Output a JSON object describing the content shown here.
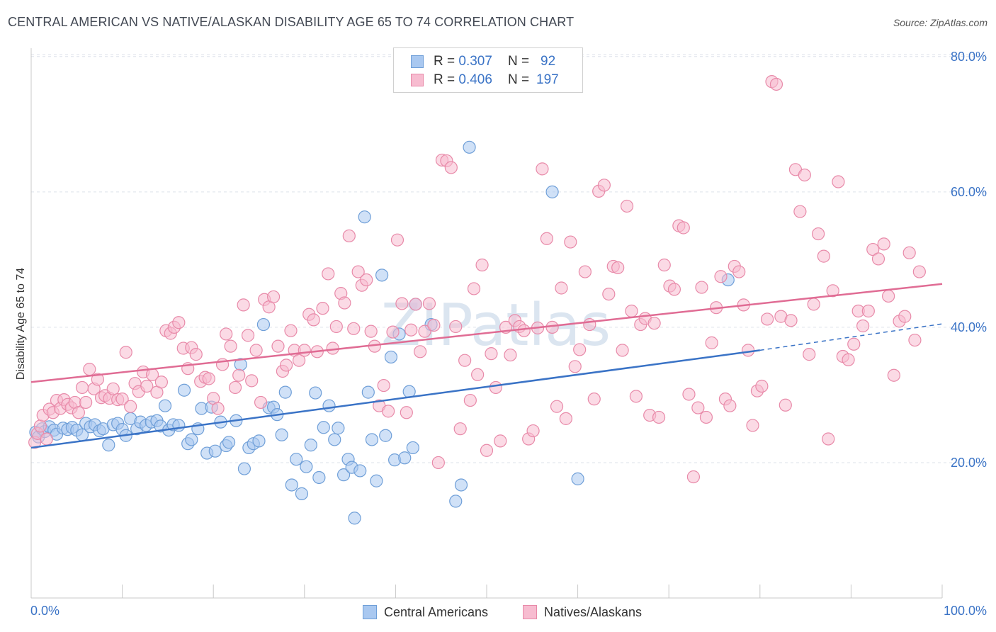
{
  "title": "CENTRAL AMERICAN VS NATIVE/ALASKAN DISABILITY AGE 65 TO 74 CORRELATION CHART",
  "source": "Source: ZipAtlas.com",
  "watermark": "ZIPatlas",
  "legend": {
    "rows": [
      {
        "r_label": "R =",
        "r_value": "0.307",
        "n_label": "N =",
        "n_value": "92",
        "color": "#a9c8f0",
        "border": "#6f9fd8"
      },
      {
        "r_label": "R =",
        "r_value": "0.406",
        "n_label": "N =",
        "n_value": "197",
        "color": "#f7bcd0",
        "border": "#e88aa9"
      }
    ]
  },
  "bottom_legend": [
    {
      "label": "Central Americans",
      "color": "#a9c8f0",
      "border": "#6f9fd8"
    },
    {
      "label": "Natives/Alaskans",
      "color": "#f7bcd0",
      "border": "#e88aa9"
    }
  ],
  "chart_data": {
    "type": "scatter",
    "title": "CENTRAL AMERICAN VS NATIVE/ALASKAN DISABILITY AGE 65 TO 74 CORRELATION CHART",
    "xlabel": "",
    "ylabel": "Disability Age 65 to 74",
    "xlim": [
      0,
      100
    ],
    "ylim": [
      0,
      82
    ],
    "x_tick_labels": [
      "0.0%",
      "100.0%"
    ],
    "y_ticks": [
      20,
      40,
      60,
      80
    ],
    "y_tick_labels": [
      "20.0%",
      "40.0%",
      "60.0%",
      "80.0%"
    ],
    "grid": true,
    "legend_position": "top-center",
    "series": [
      {
        "name": "Central Americans",
        "color": "#6f9fd8",
        "fill": "#a9c8f0",
        "trend_line": {
          "x": [
            0,
            80
          ],
          "y": [
            22.2,
            36.6
          ],
          "dashed_extension": {
            "x": [
              80,
              100
            ],
            "y": [
              36.6,
              40.5
            ]
          },
          "color": "#3a73c6"
        },
        "points": [
          [
            0.5,
            24.5
          ],
          [
            0.8,
            23.8
          ],
          [
            1.2,
            25.0
          ],
          [
            1.5,
            24.6
          ],
          [
            2.0,
            25.3
          ],
          [
            2.5,
            24.8
          ],
          [
            2.8,
            24.2
          ],
          [
            3.5,
            25.1
          ],
          [
            4.0,
            24.9
          ],
          [
            4.5,
            25.2
          ],
          [
            5.0,
            24.8
          ],
          [
            5.6,
            24.1
          ],
          [
            6.0,
            25.8
          ],
          [
            6.5,
            25.3
          ],
          [
            7.0,
            25.6
          ],
          [
            7.5,
            24.7
          ],
          [
            7.9,
            25.0
          ],
          [
            8.5,
            22.6
          ],
          [
            9.0,
            25.6
          ],
          [
            9.5,
            25.8
          ],
          [
            10.0,
            24.9
          ],
          [
            10.4,
            24.0
          ],
          [
            10.9,
            26.5
          ],
          [
            11.6,
            25.0
          ],
          [
            12.0,
            26.0
          ],
          [
            12.6,
            25.5
          ],
          [
            13.2,
            26.0
          ],
          [
            13.8,
            26.2
          ],
          [
            14.2,
            25.4
          ],
          [
            14.7,
            28.4
          ],
          [
            15.1,
            24.8
          ],
          [
            15.6,
            25.6
          ],
          [
            16.2,
            25.5
          ],
          [
            16.8,
            30.7
          ],
          [
            17.2,
            22.8
          ],
          [
            17.6,
            23.4
          ],
          [
            18.3,
            25.0
          ],
          [
            18.7,
            28.0
          ],
          [
            19.3,
            21.4
          ],
          [
            19.8,
            28.2
          ],
          [
            20.2,
            21.7
          ],
          [
            20.8,
            26.0
          ],
          [
            21.4,
            22.5
          ],
          [
            21.7,
            23.0
          ],
          [
            22.5,
            26.2
          ],
          [
            23.0,
            34.5
          ],
          [
            23.4,
            19.1
          ],
          [
            23.9,
            22.2
          ],
          [
            24.4,
            22.8
          ],
          [
            25.0,
            23.2
          ],
          [
            25.5,
            40.4
          ],
          [
            26.1,
            28.1
          ],
          [
            26.6,
            28.2
          ],
          [
            27.0,
            27.1
          ],
          [
            27.5,
            24.1
          ],
          [
            27.9,
            30.4
          ],
          [
            28.6,
            16.7
          ],
          [
            29.1,
            20.5
          ],
          [
            29.7,
            15.4
          ],
          [
            30.2,
            19.4
          ],
          [
            30.7,
            22.6
          ],
          [
            31.2,
            30.3
          ],
          [
            31.6,
            17.8
          ],
          [
            32.1,
            25.2
          ],
          [
            32.7,
            28.4
          ],
          [
            33.3,
            23.4
          ],
          [
            33.7,
            25.1
          ],
          [
            34.3,
            18.2
          ],
          [
            34.8,
            20.5
          ],
          [
            35.2,
            19.3
          ],
          [
            35.5,
            11.8
          ],
          [
            36.1,
            18.8
          ],
          [
            36.6,
            56.3
          ],
          [
            37.0,
            30.4
          ],
          [
            37.4,
            23.4
          ],
          [
            37.9,
            17.3
          ],
          [
            38.5,
            47.7
          ],
          [
            38.9,
            24.0
          ],
          [
            39.5,
            35.6
          ],
          [
            39.9,
            20.4
          ],
          [
            40.4,
            39.0
          ],
          [
            41.0,
            20.7
          ],
          [
            41.5,
            30.5
          ],
          [
            41.9,
            22.2
          ],
          [
            42.2,
            43.4
          ],
          [
            43.9,
            40.4
          ],
          [
            46.6,
            14.3
          ],
          [
            47.2,
            16.7
          ],
          [
            48.1,
            66.6
          ],
          [
            57.2,
            60.0
          ],
          [
            60.0,
            17.6
          ],
          [
            76.5,
            47.0
          ]
        ]
      },
      {
        "name": "Natives/Alaskans",
        "color": "#e88aa9",
        "fill": "#f7bcd0",
        "trend_line": {
          "x": [
            0,
            100
          ],
          "y": [
            31.9,
            46.4
          ],
          "color": "#e06c94"
        },
        "points": [
          [
            0.4,
            23.0
          ],
          [
            0.7,
            24.3
          ],
          [
            1.0,
            25.4
          ],
          [
            1.3,
            27.0
          ],
          [
            1.7,
            23.5
          ],
          [
            2.0,
            27.9
          ],
          [
            2.4,
            27.4
          ],
          [
            2.8,
            29.2
          ],
          [
            3.2,
            28.0
          ],
          [
            3.6,
            29.3
          ],
          [
            4.0,
            28.6
          ],
          [
            4.4,
            28.1
          ],
          [
            4.8,
            28.9
          ],
          [
            5.2,
            27.4
          ],
          [
            5.6,
            31.1
          ],
          [
            6.0,
            28.9
          ],
          [
            6.4,
            33.8
          ],
          [
            6.9,
            30.9
          ],
          [
            7.3,
            32.3
          ],
          [
            7.7,
            29.6
          ],
          [
            8.1,
            29.9
          ],
          [
            8.6,
            29.5
          ],
          [
            9.0,
            30.9
          ],
          [
            9.5,
            29.3
          ],
          [
            10.0,
            29.4
          ],
          [
            10.4,
            36.3
          ],
          [
            10.9,
            28.3
          ],
          [
            11.4,
            31.7
          ],
          [
            11.8,
            30.5
          ],
          [
            12.3,
            33.4
          ],
          [
            12.7,
            31.3
          ],
          [
            13.3,
            33.0
          ],
          [
            13.8,
            30.4
          ],
          [
            14.3,
            31.9
          ],
          [
            14.8,
            39.5
          ],
          [
            15.3,
            39.1
          ],
          [
            15.7,
            40.0
          ],
          [
            16.2,
            40.7
          ],
          [
            16.7,
            36.9
          ],
          [
            17.2,
            33.9
          ],
          [
            17.6,
            37.0
          ],
          [
            18.1,
            36.0
          ],
          [
            18.6,
            32.0
          ],
          [
            19.1,
            32.6
          ],
          [
            19.5,
            32.4
          ],
          [
            20.0,
            29.5
          ],
          [
            20.5,
            28.0
          ],
          [
            21.0,
            34.5
          ],
          [
            21.4,
            39.0
          ],
          [
            21.9,
            37.2
          ],
          [
            22.4,
            31.1
          ],
          [
            22.8,
            32.9
          ],
          [
            23.3,
            43.3
          ],
          [
            23.8,
            38.8
          ],
          [
            24.2,
            32.1
          ],
          [
            24.7,
            36.6
          ],
          [
            25.2,
            28.9
          ],
          [
            25.6,
            44.1
          ],
          [
            26.1,
            43.0
          ],
          [
            26.6,
            44.5
          ],
          [
            27.1,
            37.2
          ],
          [
            27.6,
            33.5
          ],
          [
            28.0,
            34.4
          ],
          [
            28.5,
            39.5
          ],
          [
            28.9,
            36.6
          ],
          [
            29.4,
            35.1
          ],
          [
            30.0,
            36.6
          ],
          [
            30.5,
            41.9
          ],
          [
            31.0,
            41.1
          ],
          [
            31.4,
            36.4
          ],
          [
            32.0,
            42.8
          ],
          [
            32.6,
            47.9
          ],
          [
            33.1,
            36.9
          ],
          [
            33.5,
            40.1
          ],
          [
            34.0,
            45.0
          ],
          [
            34.4,
            43.6
          ],
          [
            34.9,
            53.5
          ],
          [
            35.4,
            39.8
          ],
          [
            35.9,
            48.2
          ],
          [
            36.3,
            46.2
          ],
          [
            36.8,
            47.0
          ],
          [
            37.3,
            39.4
          ],
          [
            37.7,
            37.2
          ],
          [
            38.2,
            28.4
          ],
          [
            38.7,
            31.4
          ],
          [
            39.2,
            27.6
          ],
          [
            39.7,
            39.3
          ],
          [
            40.2,
            52.9
          ],
          [
            40.7,
            43.5
          ],
          [
            41.2,
            27.4
          ],
          [
            41.7,
            39.6
          ],
          [
            42.2,
            43.4
          ],
          [
            42.7,
            36.4
          ],
          [
            43.2,
            39.4
          ],
          [
            43.7,
            43.5
          ],
          [
            44.2,
            40.3
          ],
          [
            44.7,
            20.0
          ],
          [
            45.1,
            64.7
          ],
          [
            45.6,
            64.6
          ],
          [
            46.1,
            63.6
          ],
          [
            46.6,
            40.1
          ],
          [
            47.1,
            25.0
          ],
          [
            47.6,
            35.1
          ],
          [
            48.2,
            29.2
          ],
          [
            48.6,
            45.7
          ],
          [
            49.0,
            33.0
          ],
          [
            49.5,
            49.2
          ],
          [
            50.0,
            21.8
          ],
          [
            50.5,
            36.1
          ],
          [
            51.0,
            31.1
          ],
          [
            51.5,
            23.2
          ],
          [
            52.1,
            40.0
          ],
          [
            52.6,
            35.9
          ],
          [
            53.1,
            41.0
          ],
          [
            53.6,
            40.1
          ],
          [
            54.1,
            39.5
          ],
          [
            54.6,
            23.5
          ],
          [
            55.1,
            24.7
          ],
          [
            55.6,
            39.9
          ],
          [
            56.1,
            63.4
          ],
          [
            56.6,
            53.1
          ],
          [
            57.2,
            40.0
          ],
          [
            57.7,
            28.3
          ],
          [
            58.2,
            45.8
          ],
          [
            58.7,
            26.5
          ],
          [
            59.2,
            52.6
          ],
          [
            59.7,
            34.2
          ],
          [
            60.2,
            36.7
          ],
          [
            60.8,
            48.2
          ],
          [
            61.3,
            40.4
          ],
          [
            61.8,
            29.4
          ],
          [
            62.3,
            60.1
          ],
          [
            62.9,
            61.0
          ],
          [
            63.4,
            44.9
          ],
          [
            63.9,
            49.0
          ],
          [
            64.4,
            48.8
          ],
          [
            64.9,
            36.6
          ],
          [
            65.4,
            57.9
          ],
          [
            65.9,
            42.4
          ],
          [
            66.4,
            29.8
          ],
          [
            66.9,
            40.4
          ],
          [
            67.4,
            41.3
          ],
          [
            67.9,
            27.0
          ],
          [
            68.4,
            40.6
          ],
          [
            68.9,
            26.7
          ],
          [
            69.5,
            49.2
          ],
          [
            70.1,
            46.1
          ],
          [
            70.6,
            45.6
          ],
          [
            71.1,
            55.0
          ],
          [
            71.6,
            54.7
          ],
          [
            72.2,
            30.1
          ],
          [
            72.7,
            17.9
          ],
          [
            73.2,
            28.1
          ],
          [
            73.6,
            45.9
          ],
          [
            74.1,
            26.7
          ],
          [
            74.7,
            37.7
          ],
          [
            75.2,
            42.9
          ],
          [
            75.7,
            47.5
          ],
          [
            76.2,
            29.4
          ],
          [
            76.7,
            28.4
          ],
          [
            77.2,
            49.0
          ],
          [
            77.7,
            48.2
          ],
          [
            78.2,
            43.3
          ],
          [
            78.7,
            36.6
          ],
          [
            79.2,
            25.5
          ],
          [
            79.7,
            30.6
          ],
          [
            80.2,
            31.3
          ],
          [
            80.8,
            41.2
          ],
          [
            81.3,
            76.3
          ],
          [
            81.8,
            75.9
          ],
          [
            82.3,
            41.6
          ],
          [
            82.8,
            28.5
          ],
          [
            83.4,
            41.0
          ],
          [
            83.9,
            63.3
          ],
          [
            84.4,
            57.1
          ],
          [
            84.9,
            62.5
          ],
          [
            85.4,
            36.0
          ],
          [
            85.9,
            43.4
          ],
          [
            86.4,
            53.8
          ],
          [
            87.0,
            50.5
          ],
          [
            87.5,
            23.5
          ],
          [
            88.0,
            45.4
          ],
          [
            88.6,
            61.5
          ],
          [
            89.1,
            35.7
          ],
          [
            89.7,
            35.2
          ],
          [
            90.3,
            37.5
          ],
          [
            90.8,
            42.4
          ],
          [
            91.3,
            40.2
          ],
          [
            91.9,
            42.4
          ],
          [
            92.4,
            51.5
          ],
          [
            93.0,
            50.1
          ],
          [
            93.6,
            52.3
          ],
          [
            94.1,
            44.6
          ],
          [
            94.7,
            32.9
          ],
          [
            95.3,
            40.9
          ],
          [
            95.9,
            41.6
          ],
          [
            96.4,
            51.0
          ],
          [
            97.0,
            38.1
          ],
          [
            97.5,
            48.2
          ]
        ]
      }
    ]
  }
}
